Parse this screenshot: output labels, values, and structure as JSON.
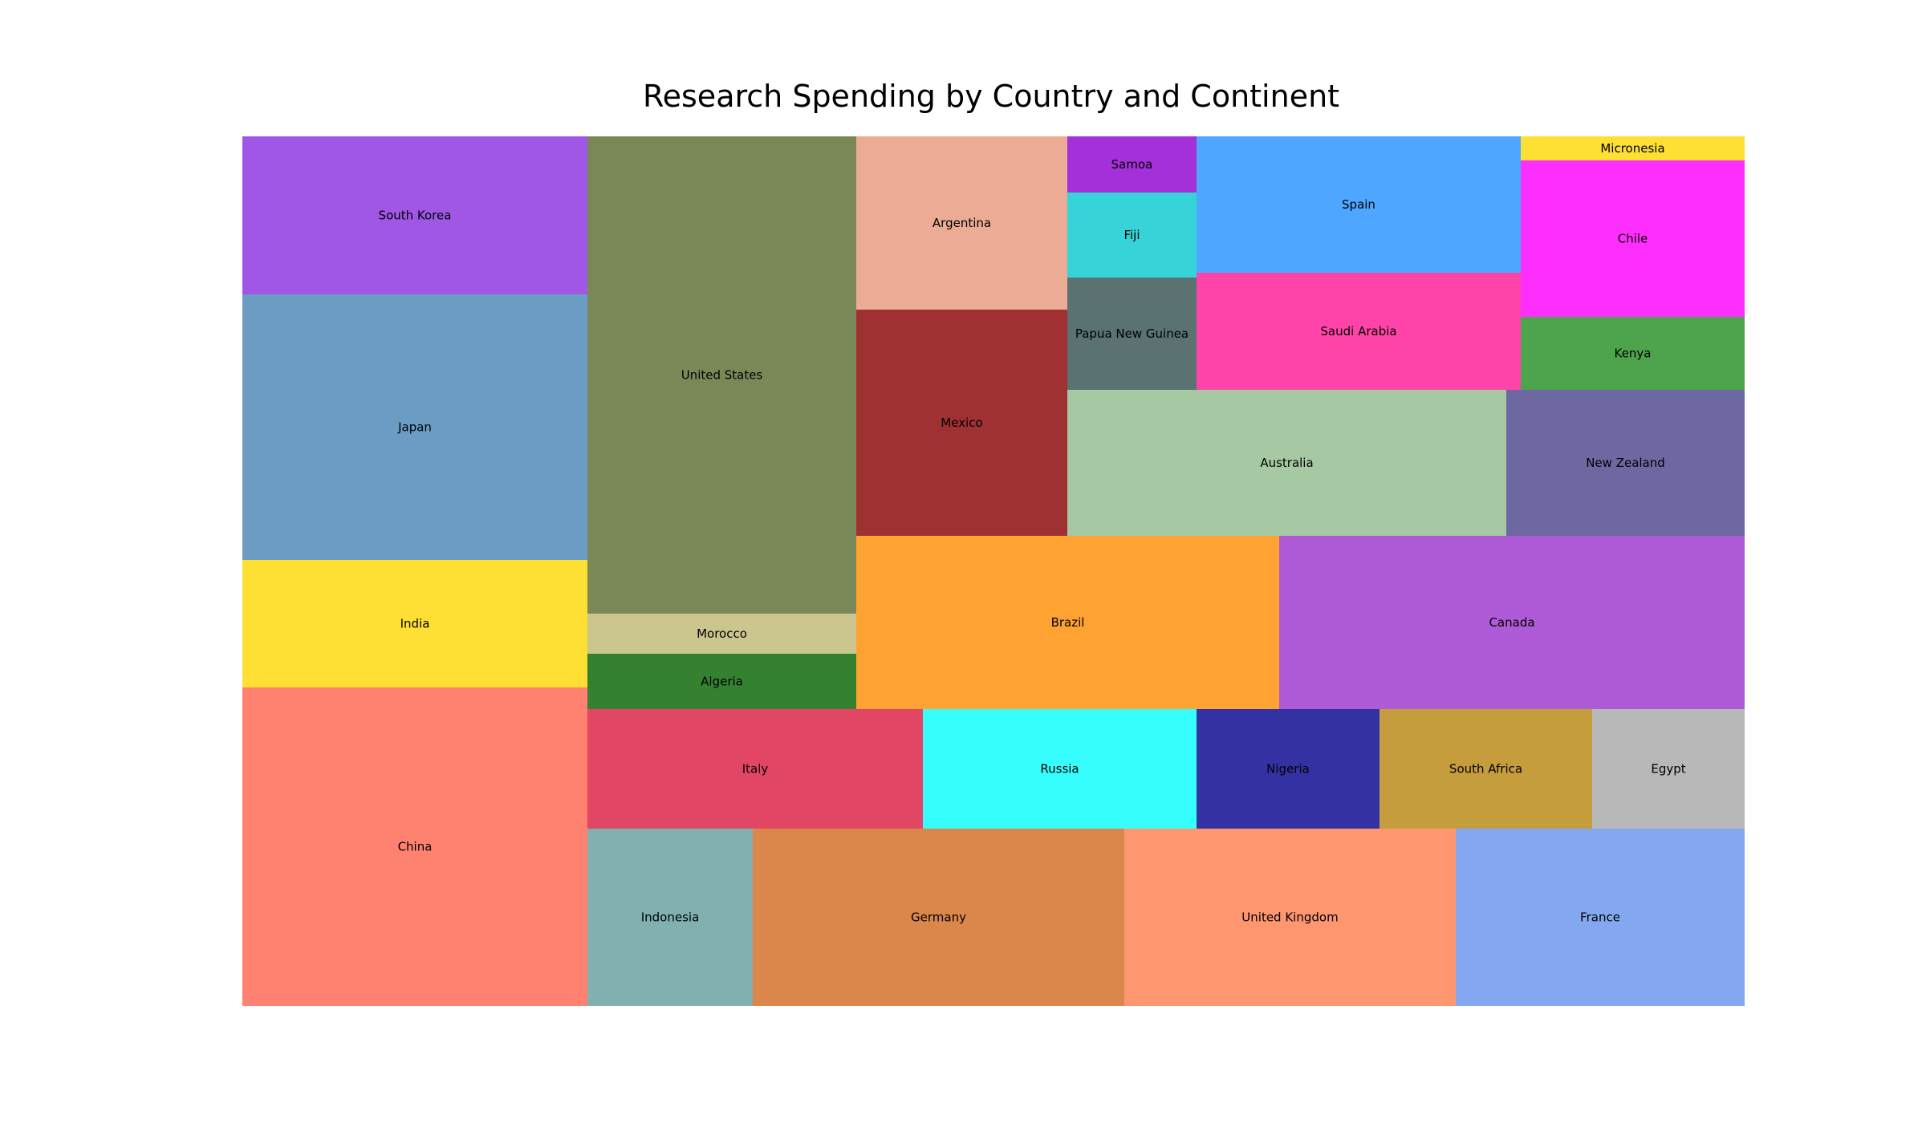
{
  "chart_data": {
    "type": "treemap",
    "title": "Research Spending by Country and Continent",
    "cells": [
      {
        "label": "China",
        "color": "#ff8270"
      },
      {
        "label": "India",
        "color": "#fedf33"
      },
      {
        "label": "Japan",
        "color": "#6b9cc3"
      },
      {
        "label": "South Korea",
        "color": "#a057e6"
      },
      {
        "label": "United States",
        "color": "#7a8858"
      },
      {
        "label": "Morocco",
        "color": "#cbc68d"
      },
      {
        "label": "Algeria",
        "color": "#348230"
      },
      {
        "label": "Argentina",
        "color": "#ecab95"
      },
      {
        "label": "Mexico",
        "color": "#a03133"
      },
      {
        "label": "Samoa",
        "color": "#a430da"
      },
      {
        "label": "Fiji",
        "color": "#36d4d8"
      },
      {
        "label": "Papua New Guinea",
        "color": "#5a7272"
      },
      {
        "label": "Spain",
        "color": "#4ea6fe"
      },
      {
        "label": "Saudi Arabia",
        "color": "#fe44a8"
      },
      {
        "label": "Micronesia",
        "color": "#fedf33"
      },
      {
        "label": "Chile",
        "color": "#fe2ffe"
      },
      {
        "label": "Kenya",
        "color": "#4ea44c"
      },
      {
        "label": "Australia",
        "color": "#a6c8a3"
      },
      {
        "label": "New Zealand",
        "color": "#6e68a2"
      },
      {
        "label": "Brazil",
        "color": "#fea332"
      },
      {
        "label": "Canada",
        "color": "#af5bd8"
      },
      {
        "label": "Italy",
        "color": "#e24665"
      },
      {
        "label": "Russia",
        "color": "#35fefc"
      },
      {
        "label": "Nigeria",
        "color": "#3432a2"
      },
      {
        "label": "South Africa",
        "color": "#c69d3c"
      },
      {
        "label": "Egypt",
        "color": "#b8b8b8"
      },
      {
        "label": "Indonesia",
        "color": "#80b0b0"
      },
      {
        "label": "Germany",
        "color": "#db864a"
      },
      {
        "label": "United Kingdom",
        "color": "#fe9670"
      },
      {
        "label": "France",
        "color": "#84a8ef"
      }
    ]
  }
}
